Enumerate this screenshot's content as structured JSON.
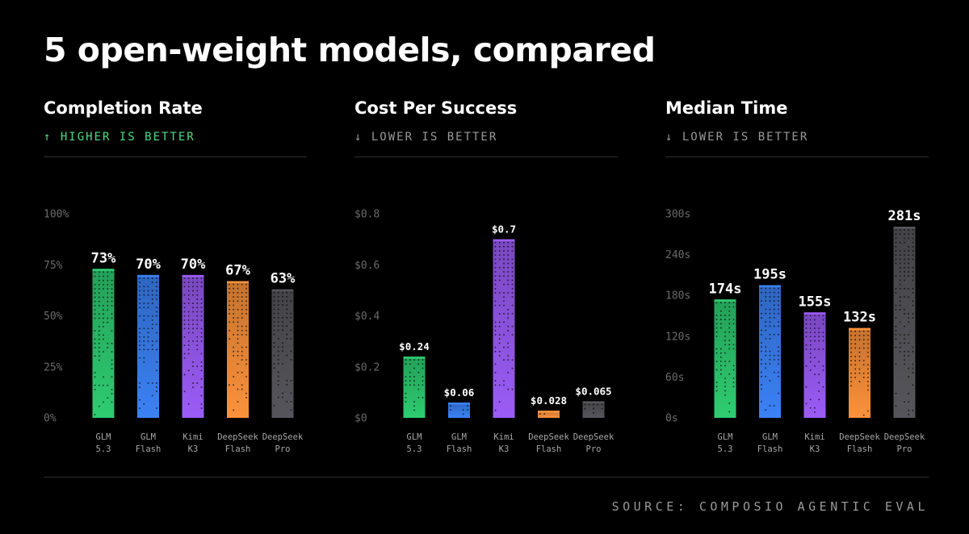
{
  "headline": "5 open-weight models, compared",
  "source": "SOURCE: COMPOSIO AGENTIC EVAL",
  "colors": {
    "green": "#2ecc71",
    "blue": "#3b82f6",
    "purple": "#9b5cf6",
    "orange": "#fb923c",
    "gray": "#55555b",
    "better_higher": "#4ade80",
    "better_lower": "#9a9a9a"
  },
  "chart_data": [
    {
      "type": "bar",
      "title": "Completion Rate",
      "subtitle": "↑ HIGHER IS BETTER",
      "subtitle_color": "#4ade80",
      "categories": [
        [
          "GLM",
          "5.3"
        ],
        [
          "GLM",
          "Flash"
        ],
        [
          "Kimi",
          "K3"
        ],
        [
          "DeepSeek",
          "Flash"
        ],
        [
          "DeepSeek",
          "Pro"
        ]
      ],
      "values": [
        73,
        70,
        70,
        67,
        63
      ],
      "value_labels": [
        "73%",
        "70%",
        "70%",
        "67%",
        "63%"
      ],
      "ticks": [
        0,
        25,
        50,
        75,
        100
      ],
      "tick_labels": [
        "0%",
        "25%",
        "50%",
        "75%",
        "100%"
      ],
      "ylim": [
        0,
        100
      ],
      "bar_colors": [
        "#2ecc71",
        "#3b82f6",
        "#9b5cf6",
        "#fb923c",
        "#55555b"
      ],
      "grid": false
    },
    {
      "type": "bar",
      "title": "Cost Per Success",
      "subtitle": "↓ LOWER IS BETTER",
      "subtitle_color": "#9a9a9a",
      "categories": [
        [
          "GLM",
          "5.3"
        ],
        [
          "GLM",
          "Flash"
        ],
        [
          "Kimi",
          "K3"
        ],
        [
          "DeepSeek",
          "Flash"
        ],
        [
          "DeepSeek",
          "Pro"
        ]
      ],
      "values": [
        0.24,
        0.06,
        0.7,
        0.028,
        0.065
      ],
      "value_labels": [
        "$0.24",
        "$0.06",
        "$0.7",
        "$0.028",
        "$0.065"
      ],
      "ticks": [
        0,
        0.2,
        0.4,
        0.6,
        0.8
      ],
      "tick_labels": [
        "$0",
        "$0.2",
        "$0.4",
        "$0.6",
        "$0.8"
      ],
      "ylim": [
        0,
        0.8
      ],
      "bar_colors": [
        "#2ecc71",
        "#3b82f6",
        "#9b5cf6",
        "#fb923c",
        "#55555b"
      ],
      "grid": false
    },
    {
      "type": "bar",
      "title": "Median Time",
      "subtitle": "↓ LOWER IS BETTER",
      "subtitle_color": "#9a9a9a",
      "categories": [
        [
          "GLM",
          "5.3"
        ],
        [
          "GLM",
          "Flash"
        ],
        [
          "Kimi",
          "K3"
        ],
        [
          "DeepSeek",
          "Flash"
        ],
        [
          "DeepSeek",
          "Pro"
        ]
      ],
      "values": [
        174,
        195,
        155,
        132,
        281
      ],
      "value_labels": [
        "174s",
        "195s",
        "155s",
        "132s",
        "281s"
      ],
      "ticks": [
        0,
        60,
        120,
        180,
        240,
        300
      ],
      "tick_labels": [
        "0s",
        "60s",
        "120s",
        "180s",
        "240s",
        "300s"
      ],
      "ylim": [
        0,
        300
      ],
      "bar_colors": [
        "#2ecc71",
        "#3b82f6",
        "#9b5cf6",
        "#fb923c",
        "#55555b"
      ],
      "grid": false
    }
  ]
}
